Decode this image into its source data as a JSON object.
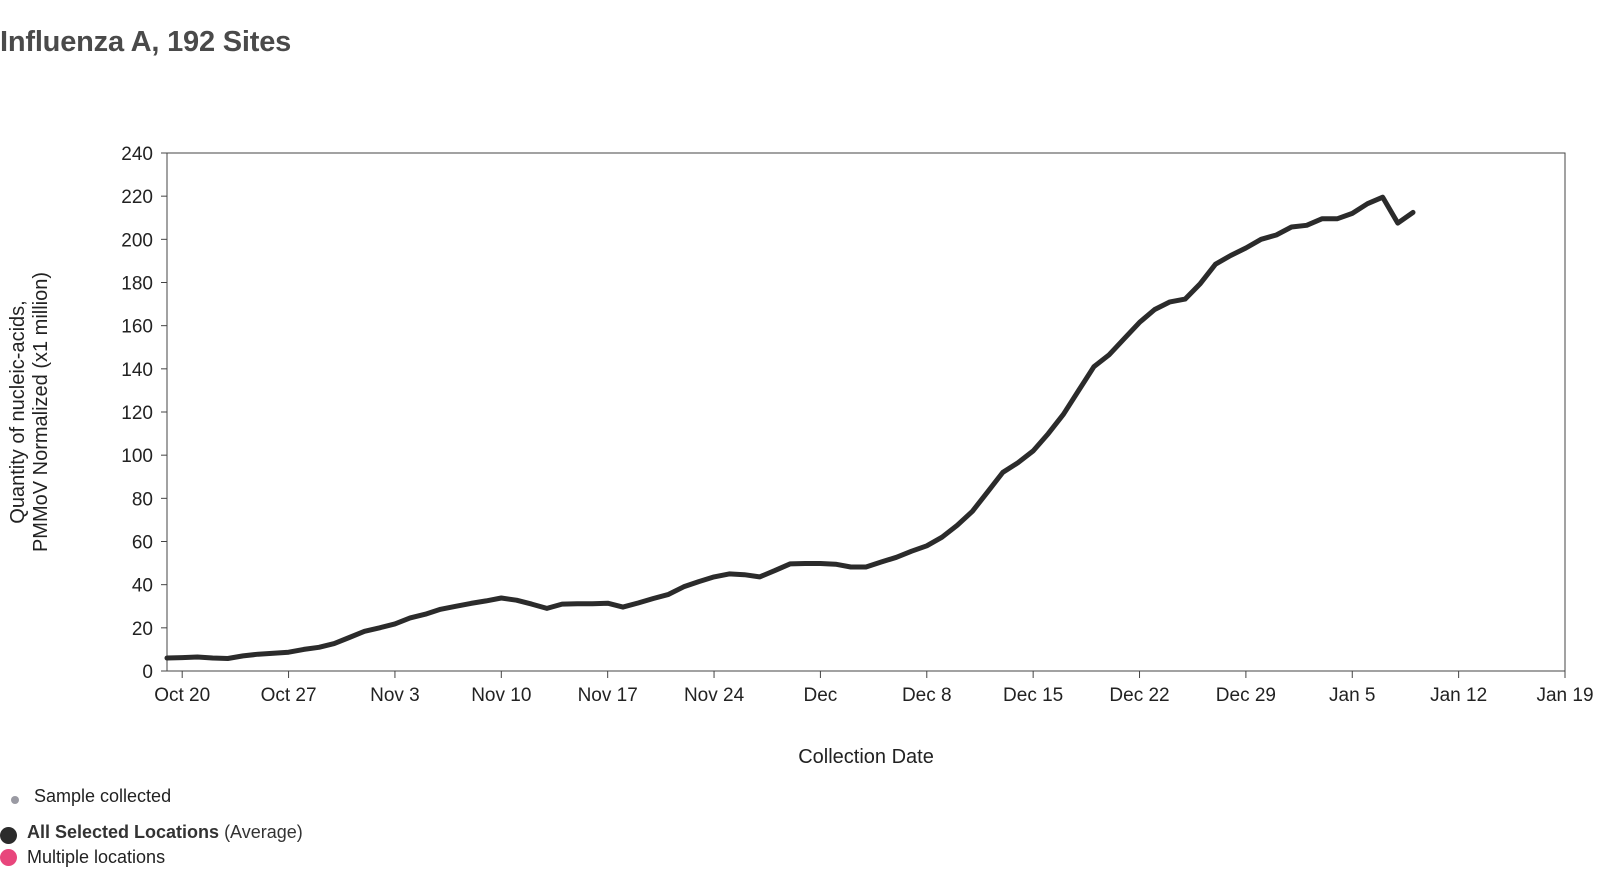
{
  "header": {
    "title": "Influenza A, 192 Sites"
  },
  "legend": {
    "sample_label": "Sample collected",
    "sample_color": "#9a9aa3",
    "all_locations_label": "All Selected Locations",
    "all_locations_suffix": "(Average)",
    "all_locations_color": "#2b2b2b",
    "multiple_label": "Multiple locations",
    "multiple_color": "#e8467c"
  },
  "chart_data": {
    "type": "line",
    "title": "Influenza A, 192 Sites",
    "xlabel": "Collection Date",
    "ylabel": [
      "Quantity of nucleic-acids,",
      "PMMoV Normalized (x1 million)"
    ],
    "xlim": [
      "2024-10-19",
      "2025-01-19"
    ],
    "ylim": [
      0,
      240
    ],
    "yticks": [
      0,
      20,
      40,
      60,
      80,
      100,
      120,
      140,
      160,
      180,
      200,
      220,
      240
    ],
    "xticks": [
      {
        "date": "2024-10-20",
        "label": "Oct 20"
      },
      {
        "date": "2024-10-27",
        "label": "Oct 27"
      },
      {
        "date": "2024-11-03",
        "label": "Nov 3"
      },
      {
        "date": "2024-11-10",
        "label": "Nov 10"
      },
      {
        "date": "2024-11-17",
        "label": "Nov 17"
      },
      {
        "date": "2024-11-24",
        "label": "Nov 24"
      },
      {
        "date": "2024-12-01",
        "label": "Dec"
      },
      {
        "date": "2024-12-08",
        "label": "Dec 8"
      },
      {
        "date": "2024-12-15",
        "label": "Dec 15"
      },
      {
        "date": "2024-12-22",
        "label": "Dec 22"
      },
      {
        "date": "2024-12-29",
        "label": "Dec 29"
      },
      {
        "date": "2025-01-05",
        "label": "Jan 5"
      },
      {
        "date": "2025-01-12",
        "label": "Jan 12"
      },
      {
        "date": "2025-01-19",
        "label": "Jan 19"
      }
    ],
    "grid": false,
    "series": [
      {
        "name": "All Selected Locations",
        "color": "#2b2b2b",
        "x": [
          "2024-10-19",
          "2024-10-20",
          "2024-10-21",
          "2024-10-22",
          "2024-10-23",
          "2024-10-24",
          "2024-10-25",
          "2024-10-26",
          "2024-10-27",
          "2024-10-28",
          "2024-10-29",
          "2024-10-30",
          "2024-10-31",
          "2024-11-01",
          "2024-11-02",
          "2024-11-03",
          "2024-11-04",
          "2024-11-05",
          "2024-11-06",
          "2024-11-07",
          "2024-11-08",
          "2024-11-09",
          "2024-11-10",
          "2024-11-11",
          "2024-11-12",
          "2024-11-13",
          "2024-11-14",
          "2024-11-15",
          "2024-11-16",
          "2024-11-17",
          "2024-11-18",
          "2024-11-19",
          "2024-11-20",
          "2024-11-21",
          "2024-11-22",
          "2024-11-23",
          "2024-11-24",
          "2024-11-25",
          "2024-11-26",
          "2024-11-27",
          "2024-11-28",
          "2024-11-29",
          "2024-11-30",
          "2024-12-01",
          "2024-12-02",
          "2024-12-03",
          "2024-12-04",
          "2024-12-05",
          "2024-12-06",
          "2024-12-07",
          "2024-12-08",
          "2024-12-09",
          "2024-12-10",
          "2024-12-11",
          "2024-12-12",
          "2024-12-13",
          "2024-12-14",
          "2024-12-15",
          "2024-12-16",
          "2024-12-17",
          "2024-12-18",
          "2024-12-19",
          "2024-12-20",
          "2024-12-21",
          "2024-12-22",
          "2024-12-23",
          "2024-12-24",
          "2024-12-25",
          "2024-12-26",
          "2024-12-27",
          "2024-12-28",
          "2024-12-29",
          "2024-12-30",
          "2024-12-31",
          "2025-01-01",
          "2025-01-02",
          "2025-01-03",
          "2025-01-04",
          "2025-01-05",
          "2025-01-06",
          "2025-01-07",
          "2025-01-08",
          "2025-01-09"
        ],
        "y": [
          6,
          6.2,
          6.5,
          6,
          5.8,
          7,
          7.8,
          8.2,
          8.7,
          10,
          11,
          12.7,
          15.5,
          18.4,
          20,
          21.8,
          24.6,
          26.3,
          28.6,
          30,
          31.3,
          32.5,
          33.8,
          32.8,
          31,
          29,
          31,
          31.2,
          31.2,
          31.4,
          29.6,
          31.5,
          33.6,
          35.5,
          39,
          41.4,
          43.6,
          45,
          44.6,
          43.6,
          46.5,
          49.6,
          49.8,
          49.8,
          49.5,
          48.2,
          48.2,
          50.5,
          52.7,
          55.5,
          58,
          62,
          67.5,
          74,
          83,
          92,
          96.5,
          102,
          110,
          119,
          130,
          141,
          146.5,
          154,
          161.5,
          167.5,
          171,
          172.3,
          179.5,
          188.5,
          192.5,
          196,
          200,
          202,
          205.7,
          206.5,
          209.5,
          209.5,
          212,
          216.5,
          219.5,
          207.5,
          212.5
        ]
      }
    ]
  }
}
